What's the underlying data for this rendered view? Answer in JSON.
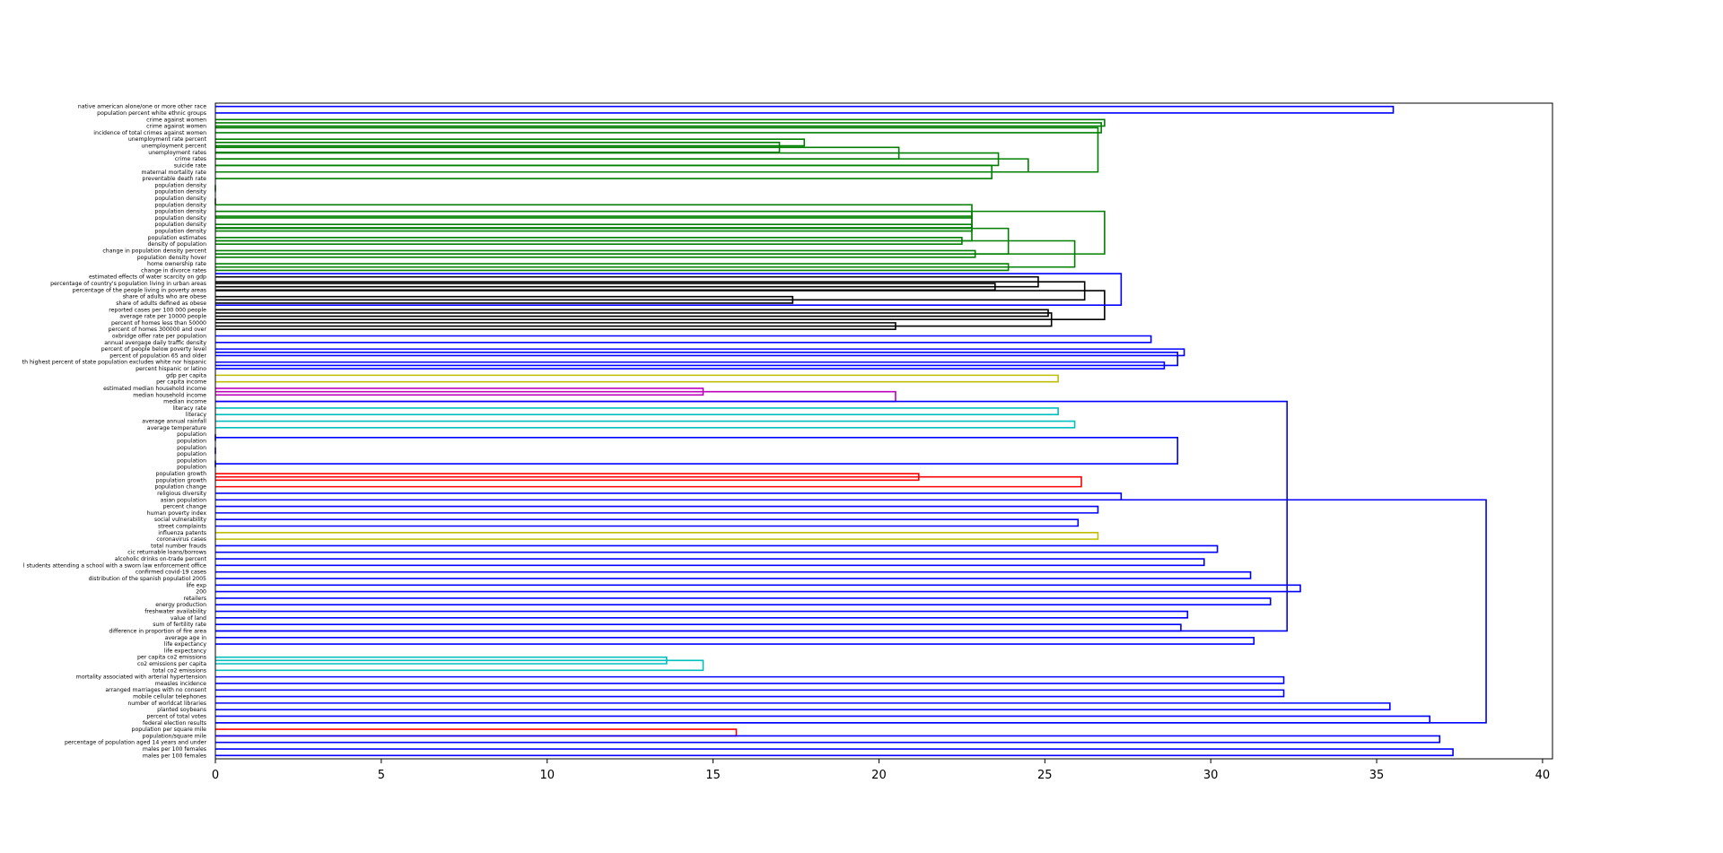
{
  "chart_data": {
    "type": "dendrogram",
    "orientation": "horizontal",
    "title": "",
    "xlabel": "",
    "ylabel": "",
    "xlim": [
      0,
      40.3
    ],
    "x_ticks": [
      0,
      5,
      10,
      15,
      20,
      25,
      30,
      35,
      40
    ],
    "grid": false,
    "leaves": [
      "native american alone/one or more other race",
      "population percent white ethnic groups",
      "crime against women",
      "crime against women",
      "incidence of total crimes against women",
      "unemployment rate percent",
      "unemployment percent",
      "unemployment rates",
      "crime rates",
      "suicide rate",
      "maternal mortality rate",
      "preventable death rate",
      "population density",
      "population density",
      "population density",
      "population density",
      "population density",
      "population density",
      "population density",
      "population density",
      "population estimates",
      "density of population",
      "change in population density percent",
      "population density hover",
      "home ownership rate",
      "change in divorce rates",
      "estimated effects of water scarcity on gdp",
      "percentage of country's population living in urban areas",
      "percentage of the people living in poverty areas",
      "share of adults who are obese",
      "share of adults defined as obese",
      "reported cases per 100 000 people",
      "average rate per 10000 people",
      "percent of homes less than 50000",
      "percent of homes 300000 and over",
      "oxbridge offer rate per population",
      "annual avergage daily traffic density",
      "percent of people below poverty level",
      "percent of population 65 and older",
      "th highest percent of state population excludes white nor hispanic",
      "percent hispanic or latino",
      "gdp per capita",
      "per capita income",
      "estimated median household income",
      "median household income",
      "median income",
      "literacy rate",
      "literacy",
      "average annual rainfall",
      "average temperature",
      "population",
      "population",
      "population",
      "population",
      "population",
      "population",
      "population growth",
      "population growth",
      "population change",
      "religious diversity",
      "asian population",
      "percent change",
      "human poverty index",
      "social vulnerability",
      "street complaints",
      "influenza patents",
      "coronavirus cases",
      "total number frauds",
      "cic returnable loans/borrows",
      "alcoholic drinks on-trade percent",
      "l students attending a school with a sworn law enforcement office",
      "confirmed covid-19 cases",
      "distribution of the spanish populatiol 2005",
      "life exp",
      "200",
      "retailers",
      "energy production",
      "freshwater availability",
      "value of land",
      "sum of fertility rate",
      "difference in proportion of fire area",
      "average age in",
      "life expectancy",
      "life expectancy",
      "per capita co2 emissions",
      "co2 emissions per capita",
      "total co2 emissions",
      "mortality associated with arterial hypertension",
      "measles incidence",
      "arranged marriages with no consent",
      "mobile cellular telephones",
      "number of worldcat libraries",
      "planted soybeans",
      "percent of total votes",
      "federal election results",
      "population per square mile",
      "population/square mile",
      "percentage of population aged 14 years and under",
      "males per 100 females",
      "males per 100 females"
    ],
    "link_colors": [
      "#0000ff",
      "#008000",
      "#000000",
      "#bfbf00",
      "#bf00bf",
      "#00bfbf",
      "#ff0000"
    ],
    "links": [
      {
        "a": 0,
        "b": 1,
        "h": 35.5,
        "color": "#0000ff"
      },
      {
        "a": 5,
        "b": 6,
        "h": 17.75,
        "color": "#008000"
      },
      {
        "a": 5.5,
        "b": 7,
        "h": 17.0,
        "color": "#008000"
      },
      {
        "a": 6.25,
        "b": 8,
        "h": 20.6,
        "color": "#008000"
      },
      {
        "a": 7.1,
        "b": 9,
        "h": 23.6,
        "color": "#008000"
      },
      {
        "a": 8.0,
        "b": 10,
        "h": 24.5,
        "color": "#008000"
      },
      {
        "a": 9.0,
        "b": 11,
        "h": 23.4,
        "color": "#008000"
      },
      {
        "a": 2,
        "b": 3,
        "h": 26.8,
        "color": "#008000"
      },
      {
        "a": 2.5,
        "b": 4,
        "h": 26.7,
        "color": "#008000"
      },
      {
        "a": 3.25,
        "b": 10.0,
        "h": 26.6,
        "color": "#008000"
      },
      {
        "a": 12,
        "b": 13,
        "h": 0.0,
        "color": "#008000"
      },
      {
        "a": 14,
        "b": 15,
        "h": 0.0,
        "color": "#008000"
      },
      {
        "a": 16,
        "b": 17,
        "h": 22.8,
        "color": "#008000"
      },
      {
        "a": 18,
        "b": 19,
        "h": 22.8,
        "color": "#008000"
      },
      {
        "a": 15.0,
        "b": 18.5,
        "h": 22.8,
        "color": "#008000"
      },
      {
        "a": 20,
        "b": 21,
        "h": 22.5,
        "color": "#008000"
      },
      {
        "a": 20.5,
        "b": 16.75,
        "h": 22.8,
        "color": "#008000"
      },
      {
        "a": 22,
        "b": 23,
        "h": 22.9,
        "color": "#008000"
      },
      {
        "a": 18.6,
        "b": 22.5,
        "h": 23.9,
        "color": "#008000"
      },
      {
        "a": 24,
        "b": 25,
        "h": 23.9,
        "color": "#008000"
      },
      {
        "a": 20.5,
        "b": 24.5,
        "h": 25.9,
        "color": "#008000"
      },
      {
        "a": 16.0,
        "b": 22.5,
        "h": 26.8,
        "color": "#008000"
      },
      {
        "a": 27,
        "b": 28,
        "h": 23.5,
        "color": "#000000"
      },
      {
        "a": 26,
        "b": 27.5,
        "h": 24.8,
        "color": "#000000"
      },
      {
        "a": 29,
        "b": 30,
        "h": 17.4,
        "color": "#000000"
      },
      {
        "a": 31,
        "b": 32,
        "h": 25.1,
        "color": "#000000"
      },
      {
        "a": 33,
        "b": 34,
        "h": 20.5,
        "color": "#000000"
      },
      {
        "a": 31.5,
        "b": 33.5,
        "h": 25.2,
        "color": "#000000"
      },
      {
        "a": 26.75,
        "b": 29.5,
        "h": 26.2,
        "color": "#000000"
      },
      {
        "a": 28.1,
        "b": 32.5,
        "h": 26.8,
        "color": "#000000"
      },
      {
        "a": 25.5,
        "b": 30.3,
        "h": 27.3,
        "color": "#0000ff"
      },
      {
        "a": 35,
        "b": 36,
        "h": 28.2,
        "color": "#0000ff"
      },
      {
        "a": 37,
        "b": 38,
        "h": 29.2,
        "color": "#0000ff"
      },
      {
        "a": 39,
        "b": 40,
        "h": 28.6,
        "color": "#0000ff"
      },
      {
        "a": 37.5,
        "b": 39.5,
        "h": 29.0,
        "color": "#0000ff"
      },
      {
        "a": 43,
        "b": 44,
        "h": 14.7,
        "color": "#bf00bf"
      },
      {
        "a": 43.5,
        "b": 45,
        "h": 20.5,
        "color": "#bf00bf"
      },
      {
        "a": 46,
        "b": 47,
        "h": 25.4,
        "color": "#00bfbf"
      },
      {
        "a": 48,
        "b": 49,
        "h": 25.9,
        "color": "#00bfbf"
      },
      {
        "a": 41,
        "b": 42,
        "h": 25.4,
        "color": "#bfbf00"
      },
      {
        "a": 50,
        "b": 51,
        "h": 0.0,
        "color": "#0000ff"
      },
      {
        "a": 52,
        "b": 53,
        "h": 0.0,
        "color": "#0000ff"
      },
      {
        "a": 54,
        "b": 55,
        "h": 0.0,
        "color": "#0000ff"
      },
      {
        "a": 50.5,
        "b": 54.5,
        "h": 29.0,
        "color": "#0000ff"
      },
      {
        "a": 56,
        "b": 57,
        "h": 21.2,
        "color": "#ff0000"
      },
      {
        "a": 56.5,
        "b": 58,
        "h": 26.1,
        "color": "#ff0000"
      },
      {
        "a": 59,
        "b": 60,
        "h": 27.3,
        "color": "#0000ff"
      },
      {
        "a": 61,
        "b": 62,
        "h": 26.6,
        "color": "#0000ff"
      },
      {
        "a": 63,
        "b": 64,
        "h": 26.0,
        "color": "#0000ff"
      },
      {
        "a": 65,
        "b": 66,
        "h": 26.6,
        "color": "#bfbf00"
      },
      {
        "a": 67,
        "b": 68,
        "h": 30.2,
        "color": "#0000ff"
      },
      {
        "a": 69,
        "b": 70,
        "h": 29.8,
        "color": "#0000ff"
      },
      {
        "a": 71,
        "b": 72,
        "h": 31.2,
        "color": "#0000ff"
      },
      {
        "a": 73,
        "b": 74,
        "h": 32.7,
        "color": "#0000ff"
      },
      {
        "a": 75,
        "b": 76,
        "h": 31.8,
        "color": "#0000ff"
      },
      {
        "a": 77,
        "b": 78,
        "h": 29.3,
        "color": "#0000ff"
      },
      {
        "a": 79,
        "b": 80,
        "h": 29.1,
        "color": "#0000ff"
      },
      {
        "a": 81,
        "b": 82,
        "h": 31.3,
        "color": "#0000ff"
      },
      {
        "a": 84,
        "b": 85,
        "h": 13.6,
        "color": "#00bfbf"
      },
      {
        "a": 84.5,
        "b": 86,
        "h": 14.7,
        "color": "#00bfbf"
      },
      {
        "a": 87,
        "b": 88,
        "h": 32.2,
        "color": "#0000ff"
      },
      {
        "a": 89,
        "b": 90,
        "h": 32.2,
        "color": "#0000ff"
      },
      {
        "a": 91,
        "b": 92,
        "h": 35.4,
        "color": "#0000ff"
      },
      {
        "a": 93,
        "b": 94,
        "h": 36.6,
        "color": "#0000ff"
      },
      {
        "a": 95,
        "b": 96,
        "h": 15.7,
        "color": "#ff0000"
      },
      {
        "a": 96,
        "b": 97,
        "h": 36.9,
        "color": "#0000ff"
      },
      {
        "a": 98,
        "b": 99,
        "h": 37.3,
        "color": "#0000ff"
      },
      {
        "a": 45,
        "b": 80,
        "h": 32.3,
        "color": "#0000ff"
      },
      {
        "a": 60,
        "b": 94,
        "h": 38.3,
        "color": "#0000ff"
      }
    ]
  }
}
